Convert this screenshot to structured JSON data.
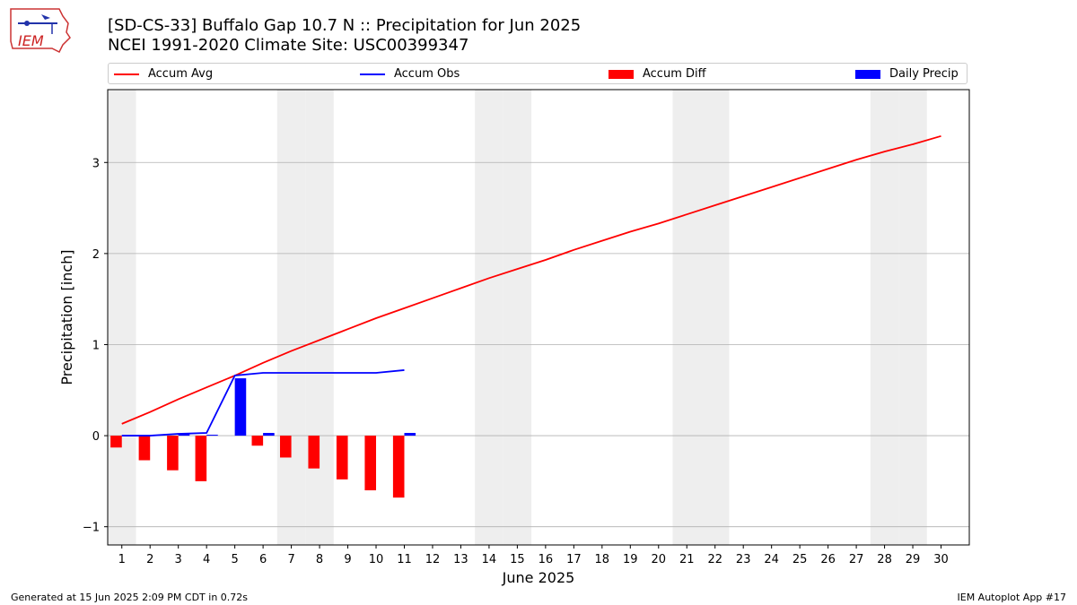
{
  "header": {
    "title_line1": "[SD-CS-33] Buffalo Gap 10.7 N :: Precipitation for Jun 2025",
    "title_line2": "NCEI 1991-2020 Climate Site: USC00399347"
  },
  "logo": {
    "text": "IEM",
    "icon": "iowa-state-map-icon"
  },
  "legend": {
    "items": [
      {
        "label": "Accum Avg",
        "kind": "line",
        "color": "#ff0000"
      },
      {
        "label": "Accum Obs",
        "kind": "line",
        "color": "#0000ff"
      },
      {
        "label": "Accum Diff",
        "kind": "patch",
        "color": "#ff0000"
      },
      {
        "label": "Daily Precip",
        "kind": "patch",
        "color": "#0000ff"
      }
    ]
  },
  "footer": {
    "left": "Generated at 15 Jun 2025 2:09 PM CDT in 0.72s",
    "right": "IEM Autoplot App #17"
  },
  "chart_data": {
    "type": "line",
    "xlabel": "June 2025",
    "ylabel": "Precipitation [inch]",
    "xlim": [
      0.5,
      31.0
    ],
    "ylim": [
      -1.2,
      3.8
    ],
    "yticks": [
      -1,
      0,
      1,
      2,
      3
    ],
    "xticks": [
      1,
      2,
      3,
      4,
      5,
      6,
      7,
      8,
      9,
      10,
      11,
      12,
      13,
      14,
      15,
      16,
      17,
      18,
      19,
      20,
      21,
      22,
      23,
      24,
      25,
      26,
      27,
      28,
      29,
      30
    ],
    "grid": "y",
    "shaded_weekend_days": [
      1,
      7,
      8,
      14,
      15,
      21,
      22,
      28,
      29
    ],
    "colors": {
      "avg": "#ff0000",
      "obs": "#0000ff",
      "diff": "#ff0000",
      "daily": "#0000ff",
      "shade": "#eeeeee",
      "grid": "#b0b0b0"
    },
    "series": [
      {
        "name": "Accum Avg",
        "type": "line",
        "x": [
          1,
          2,
          3,
          4,
          5,
          6,
          7,
          8,
          9,
          10,
          11,
          12,
          13,
          14,
          15,
          16,
          17,
          18,
          19,
          20,
          21,
          22,
          23,
          24,
          25,
          26,
          27,
          28,
          29,
          30
        ],
        "values": [
          0.13,
          0.26,
          0.4,
          0.53,
          0.66,
          0.8,
          0.93,
          1.05,
          1.17,
          1.29,
          1.4,
          1.51,
          1.62,
          1.73,
          1.83,
          1.93,
          2.04,
          2.14,
          2.24,
          2.33,
          2.43,
          2.53,
          2.63,
          2.73,
          2.83,
          2.93,
          3.03,
          3.12,
          3.2,
          3.29
        ]
      },
      {
        "name": "Accum Obs",
        "type": "line",
        "x": [
          1,
          2,
          3,
          4,
          5,
          6,
          7,
          8,
          9,
          10,
          11
        ],
        "values": [
          0.0,
          0.0,
          0.02,
          0.03,
          0.66,
          0.69,
          0.69,
          0.69,
          0.69,
          0.69,
          0.72
        ]
      },
      {
        "name": "Accum Diff",
        "type": "bar",
        "x": [
          1,
          2,
          3,
          4,
          5,
          6,
          7,
          8,
          9,
          10,
          11
        ],
        "values": [
          -0.13,
          -0.27,
          -0.38,
          -0.5,
          0.0,
          -0.11,
          -0.24,
          -0.36,
          -0.48,
          -0.6,
          -0.68
        ]
      },
      {
        "name": "Daily Precip",
        "type": "bar",
        "x": [
          1,
          2,
          3,
          4,
          5,
          6,
          7,
          8,
          9,
          10,
          11
        ],
        "values": [
          0.0,
          0.0,
          0.02,
          0.01,
          0.63,
          0.03,
          0.0,
          0.0,
          0.0,
          0.0,
          0.03
        ]
      }
    ]
  }
}
